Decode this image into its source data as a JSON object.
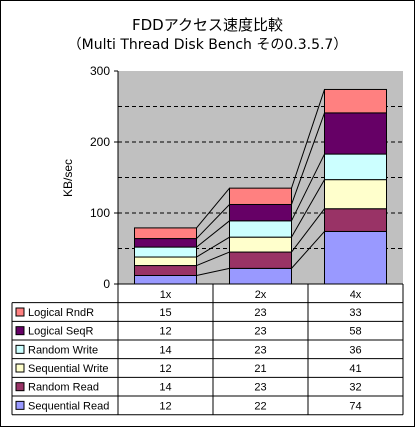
{
  "chart_data": {
    "type": "bar",
    "stacked": true,
    "title": "FDDアクセス速度比較",
    "subtitle": "（Multi Thread Disk Bench その0.3.5.7）",
    "ylabel": "KB/sec",
    "xlabel": "",
    "ylim": [
      0,
      300
    ],
    "yticks": [
      "0",
      "100",
      "200",
      "300"
    ],
    "grid": "dashed horizontal",
    "plot_background": "#c0c0c0",
    "categories": [
      "1x",
      "2x",
      "4x"
    ],
    "series": [
      {
        "name": "Sequential Read",
        "color": "#9999ff",
        "values": [
          12,
          22,
          74
        ]
      },
      {
        "name": "Random Read",
        "color": "#993366",
        "values": [
          14,
          23,
          32
        ]
      },
      {
        "name": "Sequential Write",
        "color": "#ffffcc",
        "values": [
          12,
          21,
          41
        ]
      },
      {
        "name": "Random Write",
        "color": "#ccffff",
        "values": [
          14,
          23,
          36
        ]
      },
      {
        "name": "Logical SeqR",
        "color": "#660066",
        "values": [
          12,
          23,
          58
        ]
      },
      {
        "name": "Logical RndR",
        "color": "#ff8080",
        "values": [
          15,
          23,
          33
        ]
      }
    ],
    "table_rows_order": [
      "Logical RndR",
      "Logical SeqR",
      "Random Write",
      "Sequential Write",
      "Random Read",
      "Sequential Read"
    ]
  }
}
